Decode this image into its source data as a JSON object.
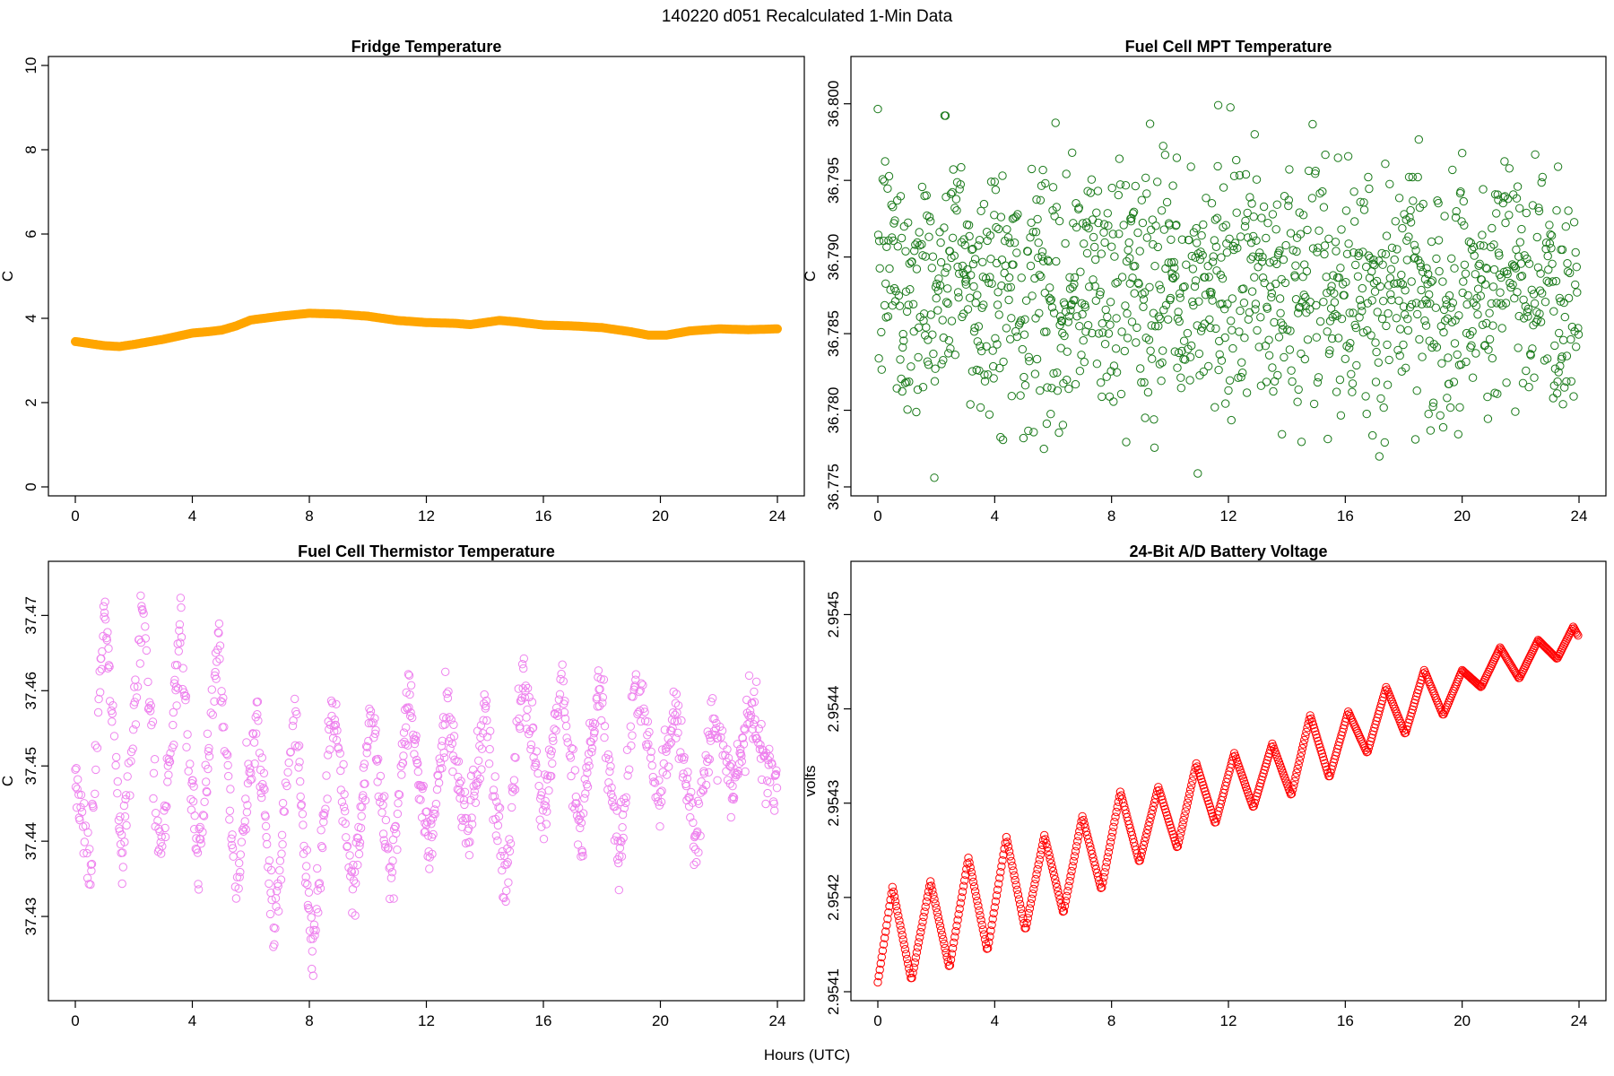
{
  "figure": {
    "title": "140220   d051   Recalculated 1-Min Data",
    "xlabel": "Hours (UTC)"
  },
  "chart_data": [
    {
      "type": "line",
      "title": "Fridge Temperature",
      "xlabel": "",
      "ylabel": "C",
      "xlim": [
        0,
        24
      ],
      "ylim": [
        0,
        10
      ],
      "xticks": [
        0,
        4,
        8,
        12,
        16,
        20,
        24
      ],
      "yticks": [
        0,
        2,
        4,
        6,
        8,
        10
      ],
      "ytick_labels": [
        "0",
        "2",
        "4",
        "6",
        "8",
        "10"
      ],
      "color": "#ffa500",
      "series": [
        {
          "x": [
            0,
            1,
            1.5,
            2,
            3,
            4,
            4.5,
            5,
            5.5,
            6,
            7,
            8,
            9,
            10,
            11,
            12,
            13,
            13.5,
            14,
            14.5,
            15,
            16,
            17,
            18,
            19,
            19.6,
            20.2,
            21,
            22,
            23,
            24
          ],
          "y": [
            3.45,
            3.35,
            3.33,
            3.38,
            3.5,
            3.65,
            3.68,
            3.72,
            3.82,
            3.96,
            4.05,
            4.12,
            4.1,
            4.05,
            3.95,
            3.9,
            3.88,
            3.85,
            3.9,
            3.95,
            3.92,
            3.84,
            3.82,
            3.78,
            3.68,
            3.6,
            3.6,
            3.7,
            3.75,
            3.73,
            3.75
          ]
        }
      ]
    },
    {
      "type": "scatter",
      "title": "Fuel Cell MPT Temperature",
      "xlabel": "",
      "ylabel": "C",
      "xlim": [
        0,
        24
      ],
      "ylim": [
        36.775,
        36.8025
      ],
      "xticks": [
        0,
        4,
        8,
        12,
        16,
        20,
        24
      ],
      "yticks": [
        36.775,
        36.78,
        36.785,
        36.79,
        36.795,
        36.8
      ],
      "ytick_labels": [
        "36.775",
        "36.780",
        "36.785",
        "36.790",
        "36.795",
        "36.800"
      ],
      "color": "#1a7a1a",
      "series": [
        {
          "description": "noise about 36.788 with spread roughly ±0.006, minute data",
          "x": [
            0,
            0.5,
            1,
            1.5,
            2,
            2.5,
            3,
            3.5,
            4,
            4.5,
            5,
            5.5,
            6,
            6.5,
            7,
            7.5,
            8,
            8.5,
            9,
            9.5,
            10,
            10.5,
            11,
            11.5,
            12,
            12.5,
            13,
            13.5,
            14,
            14.5,
            15,
            15.5,
            16,
            16.5,
            17,
            17.5,
            18,
            18.5,
            19,
            19.5,
            20,
            20.5,
            21,
            21.5,
            22,
            22.5,
            23,
            23.5,
            24
          ],
          "y": [
            36.788,
            36.79,
            36.787,
            36.789,
            36.786,
            36.791,
            36.788,
            36.787,
            36.789,
            36.788,
            36.787,
            36.79,
            36.788,
            36.786,
            36.789,
            36.788,
            36.787,
            36.79,
            36.788,
            36.787,
            36.789,
            36.786,
            36.788,
            36.789,
            36.787,
            36.788,
            36.79,
            36.787,
            36.788,
            36.786,
            36.789,
            36.788,
            36.787,
            36.789,
            36.788,
            36.786,
            36.788,
            36.789,
            36.787,
            36.788,
            36.789,
            36.787,
            36.788,
            36.79,
            36.787,
            36.788,
            36.789,
            36.787,
            36.788
          ]
        }
      ]
    },
    {
      "type": "scatter",
      "title": "Fuel Cell Thermistor Temperature",
      "xlabel": "",
      "ylabel": "C",
      "xlim": [
        0,
        24
      ],
      "ylim": [
        37.42,
        37.476
      ],
      "xticks": [
        0,
        4,
        8,
        12,
        16,
        20,
        24
      ],
      "yticks": [
        37.43,
        37.44,
        37.45,
        37.46,
        37.47
      ],
      "ytick_labels": [
        "37.43",
        "37.44",
        "37.45",
        "37.46",
        "37.47"
      ],
      "color": "#ee82ee",
      "series": [
        {
          "description": "oscillation with ~1.3 h period; swing about 37.435-37.472 before 5 h, about 37.426-37.461 after",
          "x": [
            0,
            0.5,
            1,
            1.6,
            2.3,
            2.9,
            3.6,
            4.2,
            4.9,
            5.5,
            6.2,
            6.8,
            7.5,
            8.1,
            8.8,
            9.5,
            10.1,
            10.8,
            11.4,
            12.1,
            12.7,
            13.4,
            14,
            14.7,
            15.3,
            16,
            16.6,
            17.3,
            17.9,
            18.6,
            19.2,
            19.9,
            20.5,
            21.2,
            21.8,
            22.5,
            23.1,
            23.8
          ],
          "y": [
            37.448,
            37.437,
            37.472,
            37.438,
            37.471,
            37.436,
            37.468,
            37.435,
            37.468,
            37.432,
            37.457,
            37.429,
            37.458,
            37.425,
            37.458,
            37.432,
            37.458,
            37.434,
            37.46,
            37.437,
            37.459,
            37.44,
            37.458,
            37.433,
            37.462,
            37.443,
            37.461,
            37.44,
            37.462,
            37.437,
            37.462,
            37.445,
            37.458,
            37.44,
            37.456,
            37.447,
            37.458,
            37.448
          ]
        }
      ]
    },
    {
      "type": "scatter",
      "title": "24-Bit A/D Battery Voltage",
      "xlabel": "",
      "ylabel": "volts",
      "xlim": [
        0,
        24
      ],
      "ylim": [
        2.9541,
        2.954547
      ],
      "xticks": [
        0,
        4,
        8,
        12,
        16,
        20,
        24
      ],
      "yticks": [
        2.9541,
        2.9542,
        2.9543,
        2.9544,
        2.9545
      ],
      "ytick_labels": [
        "2.9541",
        "2.9542",
        "2.9543",
        "2.9544",
        "2.9545"
      ],
      "color": "#ff0000",
      "series": [
        {
          "description": "rising trend from 2.95411 to 2.95448 with sinusoidal ripple of ~1.3 h period and amplitude ~0.00002",
          "x": [
            0,
            0.1,
            0.5,
            1.15,
            1.8,
            2.45,
            3.1,
            3.75,
            4.4,
            5.05,
            5.7,
            6.35,
            7,
            7.65,
            8.3,
            8.95,
            9.6,
            10.25,
            10.9,
            11.55,
            12.2,
            12.85,
            13.5,
            14.15,
            14.8,
            15.45,
            16.1,
            16.75,
            17.4,
            18.05,
            18.7,
            19.35,
            20,
            20.65,
            21.3,
            21.95,
            22.6,
            23.25,
            23.8,
            24
          ],
          "y": [
            2.95411,
            2.95413,
            2.954211,
            2.954112,
            2.954217,
            2.954125,
            2.954242,
            2.954143,
            2.954264,
            2.954165,
            2.954266,
            2.954183,
            2.954286,
            2.954208,
            2.954312,
            2.954237,
            2.954317,
            2.954252,
            2.954342,
            2.954278,
            2.954353,
            2.954295,
            2.954363,
            2.954308,
            2.954393,
            2.954327,
            2.954397,
            2.954353,
            2.954423,
            2.954373,
            2.954441,
            2.954393,
            2.954441,
            2.954423,
            2.954465,
            2.954432,
            2.954473,
            2.954453,
            2.954487,
            2.954476
          ]
        }
      ]
    }
  ]
}
